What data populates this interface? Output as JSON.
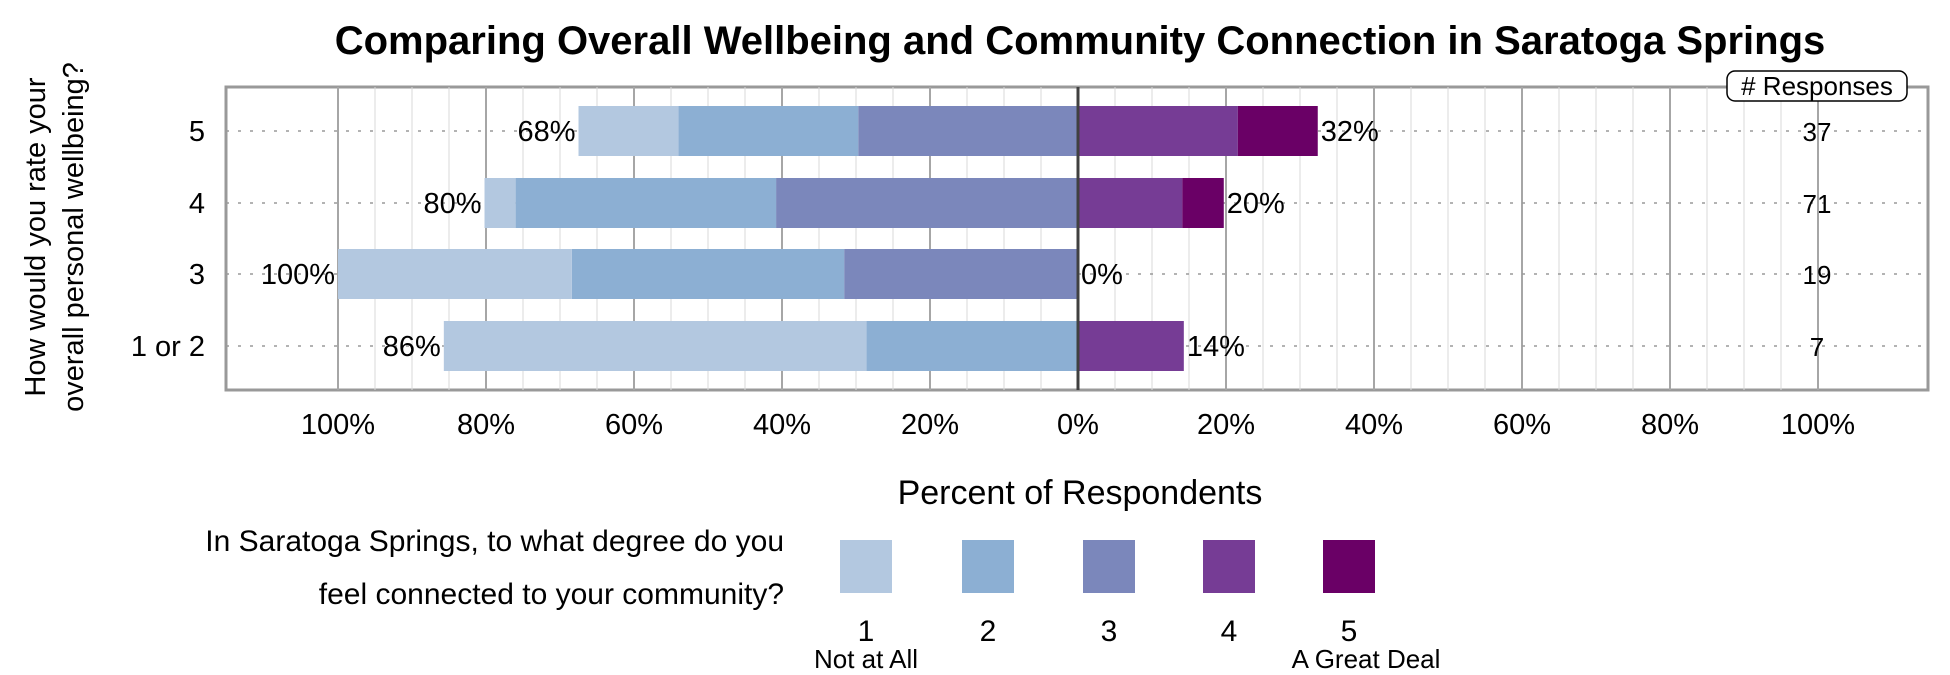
{
  "chart_data": {
    "type": "bar",
    "orientation": "horizontal",
    "stacked": "diverging",
    "title": "Comparing Overall Wellbeing and Community Connection in Saratoga Springs",
    "ylabel_lines": [
      "How would you rate your",
      "overall personal wellbeing?"
    ],
    "xlabel": "Percent of Respondents",
    "categories": [
      "5",
      "4",
      "3",
      "1 or 2"
    ],
    "x_ticks": [
      "100%",
      "80%",
      "60%",
      "40%",
      "20%",
      "0%",
      "20%",
      "40%",
      "60%",
      "80%",
      "100%"
    ],
    "xlim": [
      -100,
      100
    ],
    "grid": true,
    "series": [
      {
        "name": "1",
        "color": "#b3c8e0",
        "side": "left",
        "values": [
          13.5,
          4.2,
          31.6,
          57.1
        ]
      },
      {
        "name": "2",
        "color": "#8cafd3",
        "side": "left",
        "values": [
          24.3,
          35.2,
          36.8,
          28.6
        ]
      },
      {
        "name": "3",
        "color": "#7b87bb",
        "side": "left",
        "values": [
          29.7,
          40.8,
          31.6,
          0
        ]
      },
      {
        "name": "4",
        "color": "#763c95",
        "side": "right",
        "values": [
          21.6,
          14.1,
          0,
          14.3
        ]
      },
      {
        "name": "5",
        "color": "#6a0066",
        "side": "right",
        "values": [
          10.8,
          5.6,
          0,
          0
        ]
      }
    ],
    "left_totals": [
      "68%",
      "80%",
      "100%",
      "86%"
    ],
    "right_totals": [
      "32%",
      "20%",
      "0%",
      "14%"
    ],
    "responses_header": "# Responses",
    "responses": [
      "37",
      "71",
      "19",
      "7"
    ],
    "legend": {
      "title_lines": [
        "In Saratoga Springs, to what degree do you",
        "feel connected to your community?"
      ],
      "labels": [
        "1",
        "2",
        "3",
        "4",
        "5"
      ],
      "low_label": "Not at All",
      "high_label": "A Great Deal",
      "placement": "bottom"
    }
  }
}
